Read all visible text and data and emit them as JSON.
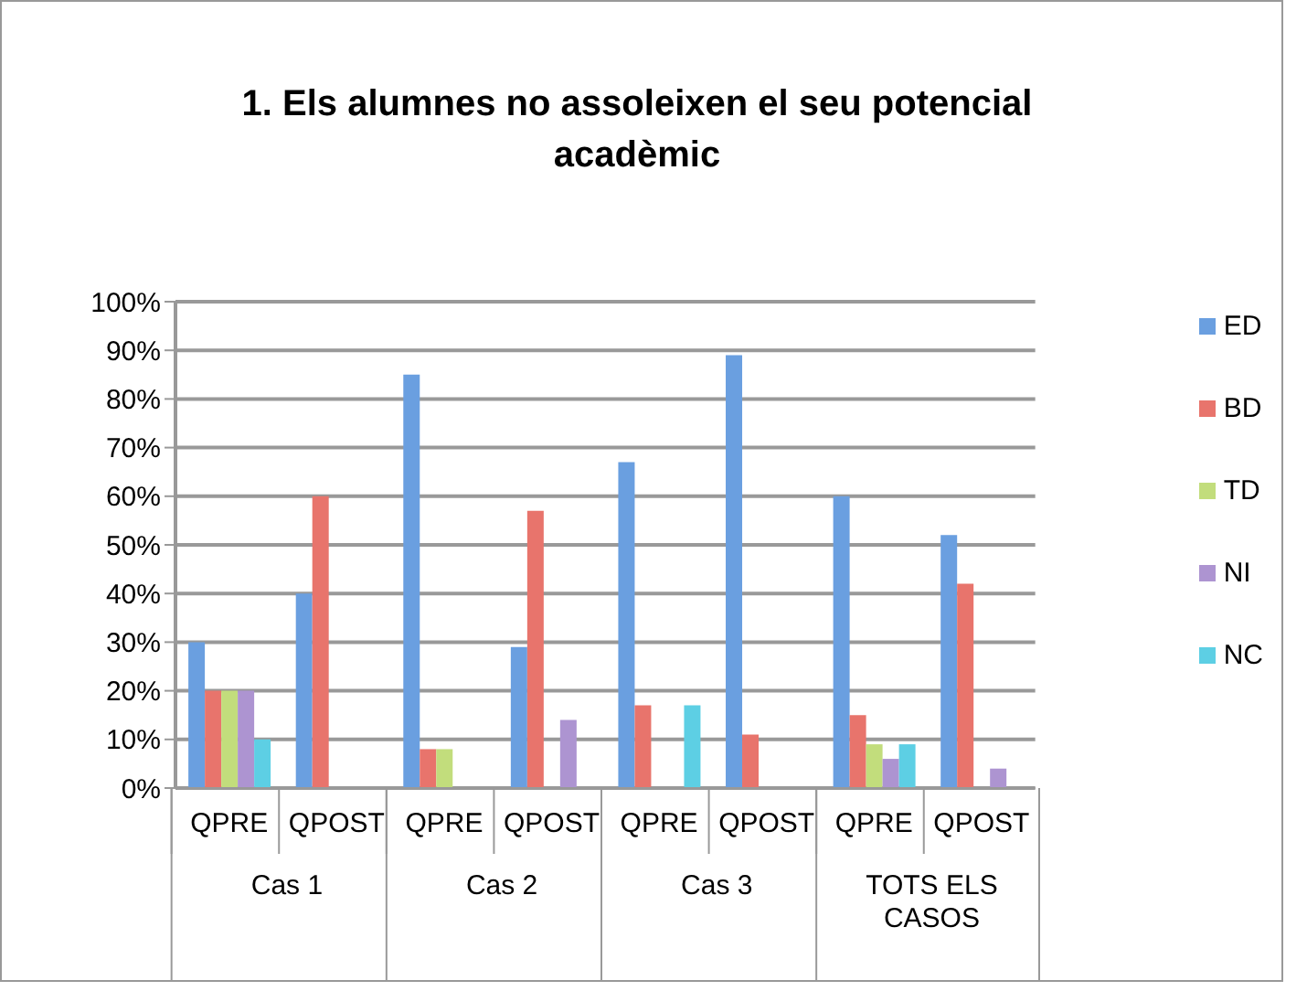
{
  "chart_data": {
    "type": "bar",
    "title": "1. Els alumnes no assoleixen el seu potencial acadèmic",
    "categories": [
      "QPRE",
      "QPOST",
      "QPRE",
      "QPOST",
      "QPRE",
      "QPOST",
      "QPRE",
      "QPOST"
    ],
    "annotations": [
      "Cas 1",
      "Cas 2",
      "Cas 3",
      "TOTS ELS CASOS"
    ],
    "series": [
      {
        "name": "ED",
        "color": "#6a9fe0",
        "values": [
          30,
          40,
          85,
          29,
          67,
          89,
          60,
          52
        ]
      },
      {
        "name": "BD",
        "color": "#e8746c",
        "values": [
          20,
          60,
          8,
          57,
          17,
          11,
          15,
          42
        ]
      },
      {
        "name": "TD",
        "color": "#c2dd7c",
        "values": [
          20,
          0,
          8,
          0,
          0,
          0,
          9,
          0
        ]
      },
      {
        "name": "NI",
        "color": "#ad94d1",
        "values": [
          20,
          0,
          0,
          14,
          0,
          0,
          6,
          4
        ]
      },
      {
        "name": "NC",
        "color": "#5dcfe4",
        "values": [
          10,
          0,
          0,
          0,
          17,
          0,
          9,
          0
        ]
      }
    ],
    "ylim": [
      0,
      100
    ],
    "yticks": [
      {
        "value": 0,
        "label": "0%"
      },
      {
        "value": 10,
        "label": "10%"
      },
      {
        "value": 20,
        "label": "20%"
      },
      {
        "value": 30,
        "label": "30%"
      },
      {
        "value": 40,
        "label": "40%"
      },
      {
        "value": 50,
        "label": "50%"
      },
      {
        "value": 60,
        "label": "60%"
      },
      {
        "value": 70,
        "label": "70%"
      },
      {
        "value": 80,
        "label": "80%"
      },
      {
        "value": 90,
        "label": "90%"
      },
      {
        "value": 100,
        "label": "100%"
      }
    ],
    "grid": "y",
    "legend": "right"
  }
}
